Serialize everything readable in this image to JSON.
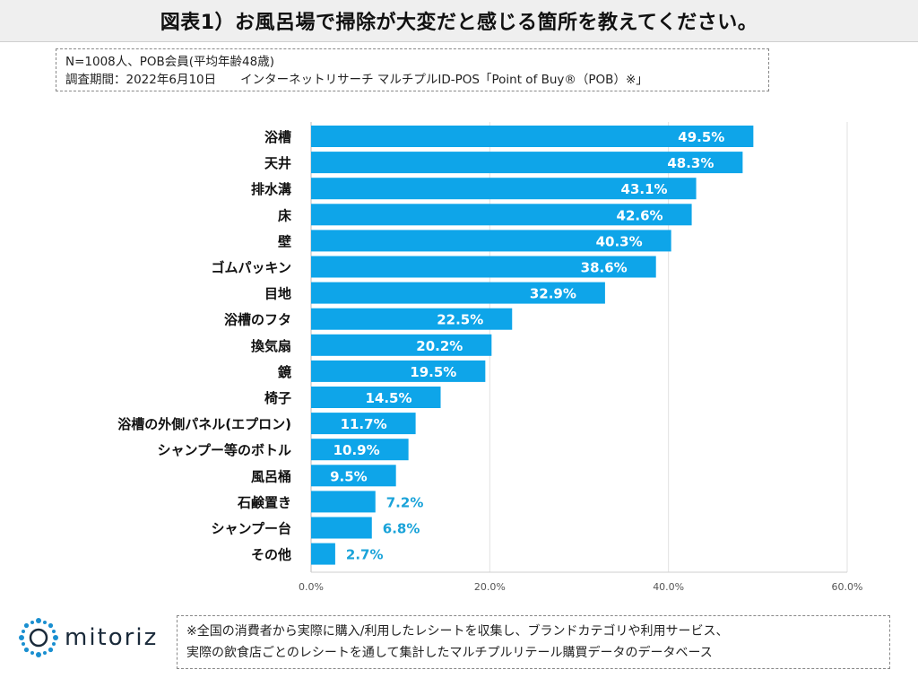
{
  "title": "図表1）お風呂場で掃除が大変だと感じる箇所を教えてください。",
  "info": {
    "line1": "N=1008人、POB会員(平均年齢48歳)",
    "line2": "調査期間：2022年6月10日　　インターネットリサーチ マルチプルID-POS「Point of Buy®（POB）※」"
  },
  "chart_data": {
    "type": "bar",
    "orientation": "horizontal",
    "categories": [
      "浴槽",
      "天井",
      "排水溝",
      "床",
      "壁",
      "ゴムパッキン",
      "目地",
      "浴槽のフタ",
      "換気扇",
      "鏡",
      "椅子",
      "浴槽の外側パネル(エプロン)",
      "シャンプー等のボトル",
      "風呂桶",
      "石鹸置き",
      "シャンプー台",
      "その他"
    ],
    "values": [
      49.5,
      48.3,
      43.1,
      42.6,
      40.3,
      38.6,
      32.9,
      22.5,
      20.2,
      19.5,
      14.5,
      11.7,
      10.9,
      9.5,
      7.2,
      6.8,
      2.7
    ],
    "value_labels": [
      "49.5%",
      "48.3%",
      "43.1%",
      "42.6%",
      "40.3%",
      "38.6%",
      "32.9%",
      "22.5%",
      "20.2%",
      "19.5%",
      "14.5%",
      "11.7%",
      "10.9%",
      "9.5%",
      "7.2%",
      "6.8%",
      "2.7%"
    ],
    "xlim": [
      0,
      60
    ],
    "xticks": [
      "0.0%",
      "20.0%",
      "40.0%",
      "60.0%"
    ],
    "xtick_values": [
      0,
      20,
      40,
      60
    ],
    "bar_color": "#0ea5e9",
    "label_color_inside": "#ffffff",
    "label_color_outside": "#1aa3d9",
    "grid": true
  },
  "logo": {
    "text": "mitoriz",
    "icon": "dotted-star-icon",
    "color": "#1a8fd0"
  },
  "footnote": {
    "line1": "※全国の消費者から実際に購入/利用したレシートを収集し、ブランドカテゴリや利用サービス、",
    "line2": "実際の飲食店ごとのレシートを通して集計したマルチプルリテール購買データのデータベース"
  }
}
